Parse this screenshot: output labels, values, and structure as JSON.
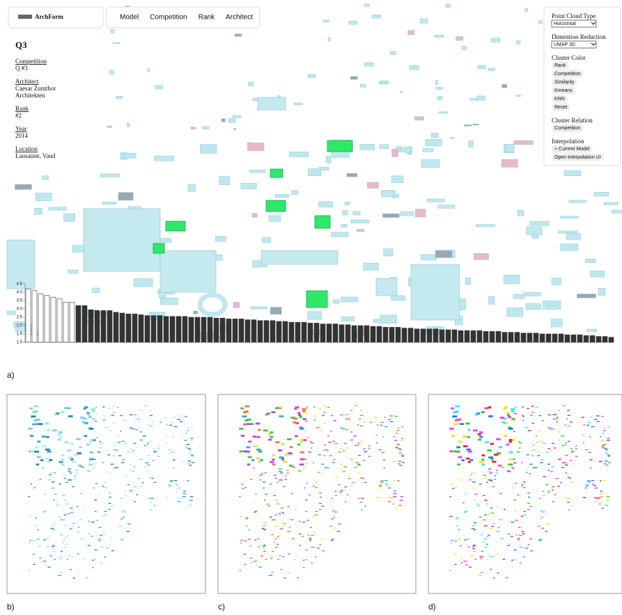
{
  "nav": {
    "brand": "ArchForm",
    "tabs": [
      "Model",
      "Competition",
      "Rank",
      "Architect"
    ]
  },
  "info": {
    "title": "Q3",
    "fields": [
      {
        "label": "Competition",
        "lines": [
          "Q #3"
        ]
      },
      {
        "label": "Architect",
        "lines": [
          "Caesar Zumthor",
          "Architekten"
        ]
      },
      {
        "label": "Rank",
        "lines": [
          "#2"
        ]
      },
      {
        "label": "Year",
        "lines": [
          "2014"
        ]
      },
      {
        "label": "Location",
        "lines": [
          "Lausanne, Vaud"
        ]
      }
    ]
  },
  "controls": {
    "sections": [
      {
        "heading": "Point Cloud Type",
        "select": "Horizontal"
      },
      {
        "heading": "Dimention Reduction",
        "select": "UMAP 3D"
      },
      {
        "heading": "Cluster Color",
        "buttons": [
          "Rank",
          "Competition",
          "Similarity",
          "Kmeans",
          "KNN",
          "Reset"
        ]
      },
      {
        "heading": "Cluster Relation",
        "buttons": [
          "Competition"
        ]
      },
      {
        "heading": "Interpolation",
        "buttons": [
          "+ Current Model",
          "Open Interpolation UI"
        ]
      }
    ]
  },
  "chart_data": {
    "type": "bar",
    "series": [
      {
        "color": "#ffffff",
        "values": [
          4.2,
          4.1,
          3.9,
          3.8,
          3.7,
          3.6,
          3.4,
          3.4
        ]
      },
      {
        "color": "#333333",
        "values": [
          3.2,
          3.2,
          2.95,
          2.9,
          2.9,
          2.9,
          2.8,
          2.75,
          2.7,
          2.7,
          2.65,
          2.6,
          2.6,
          2.6,
          2.55,
          2.55,
          2.55,
          2.55,
          2.5,
          2.5,
          2.5,
          2.5,
          2.45,
          2.45,
          2.4,
          2.4,
          2.4,
          2.35,
          2.35,
          2.3,
          2.3,
          2.3,
          2.25,
          2.25,
          2.2,
          2.2,
          2.2,
          2.15,
          2.15,
          2.1,
          2.1,
          2.1,
          2.05,
          2.05,
          2.0,
          2.0,
          2.0,
          1.95,
          1.95,
          1.9,
          1.9,
          1.9,
          1.85,
          1.85,
          1.8,
          1.8,
          1.8,
          1.8,
          1.75,
          1.75,
          1.75,
          1.7,
          1.7,
          1.7,
          1.7,
          1.65,
          1.65,
          1.65,
          1.6,
          1.6,
          1.6,
          1.55,
          1.55,
          1.55,
          1.5,
          1.5,
          1.5,
          1.5,
          1.45,
          1.45,
          1.45,
          1.4,
          1.4,
          1.35,
          1.35,
          1.3
        ]
      }
    ],
    "ylim": [
      1,
      4.5
    ],
    "yticks": [
      {
        "value": 1,
        "label": "1.0"
      },
      {
        "value": 1.5,
        "label": "1.5"
      },
      {
        "value": 2,
        "label": "2.0"
      },
      {
        "value": 2.5,
        "label": "2.5"
      },
      {
        "value": 3,
        "label": "3.0"
      },
      {
        "value": 3.5,
        "label": "3.5"
      },
      {
        "value": 4,
        "label": "4.0"
      },
      {
        "value": 4.5,
        "label": "4.5"
      }
    ]
  },
  "figure_labels": [
    "a)",
    "b)",
    "c)",
    "d)"
  ]
}
